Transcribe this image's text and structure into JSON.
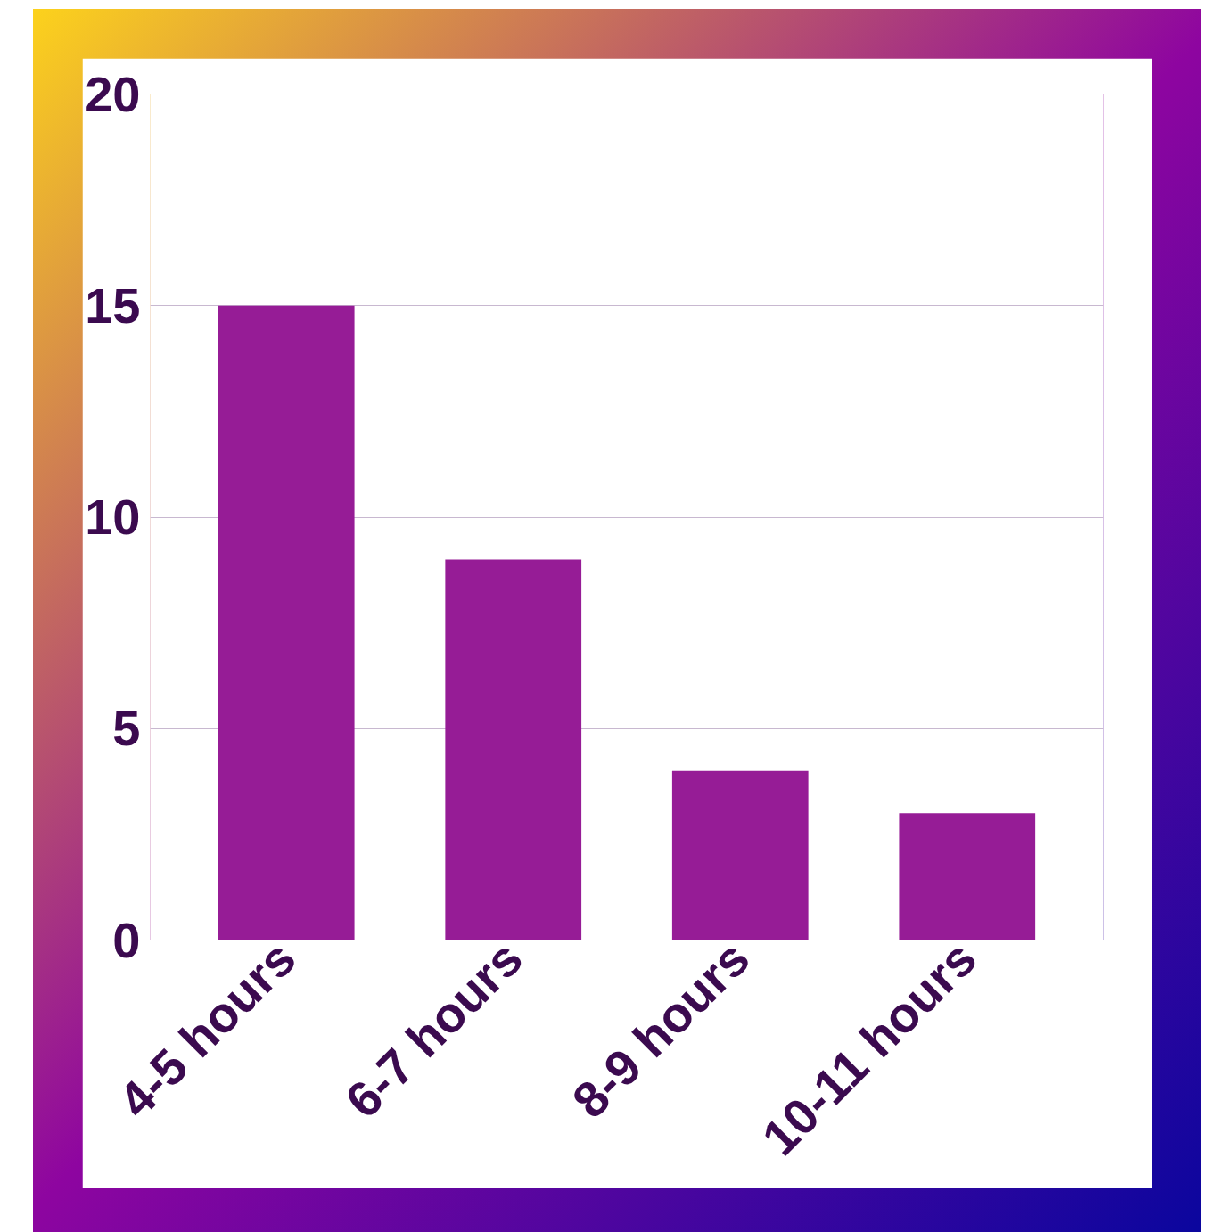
{
  "chart_data": {
    "type": "bar",
    "categories": [
      "4-5 hours",
      "6-7 hours",
      "8-9 hours",
      "10-11 hours"
    ],
    "values": [
      15,
      9,
      4,
      3
    ],
    "color": "#961c96",
    "ylim": [
      0,
      20
    ],
    "yticks": [
      0,
      5,
      10,
      15,
      20
    ],
    "grid": "y"
  }
}
